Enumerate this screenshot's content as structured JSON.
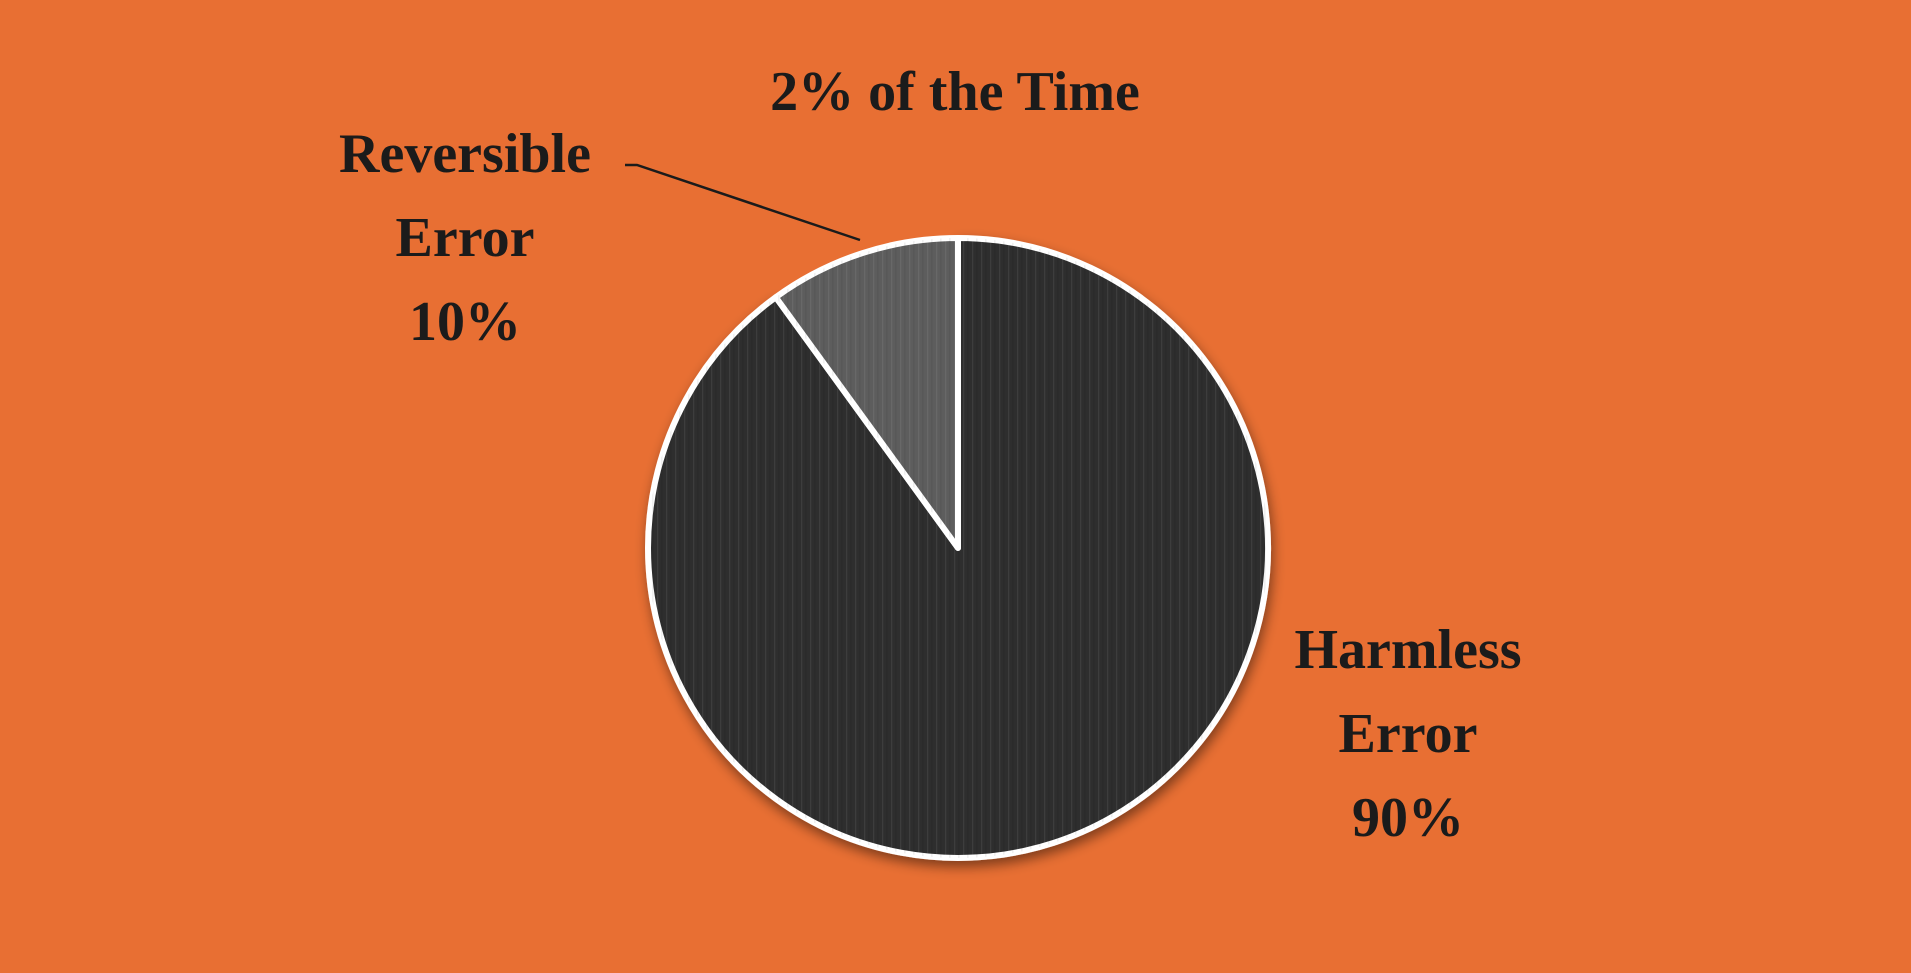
{
  "colors": {
    "background": "#e86f33",
    "slice_dark": "#2e2e2e",
    "slice_light": "#5d5d5d",
    "slice_border": "#ffffff",
    "text": "#1b1b1b"
  },
  "chart_data": {
    "type": "pie",
    "title": "2% of the Time",
    "start_angle_deg": 0,
    "direction": "counterclockwise",
    "legend": "none",
    "slices": [
      {
        "name": "Reversible Error",
        "value": 10,
        "label_lines": [
          "Reversible",
          "Error",
          "10%"
        ],
        "color": "#5d5d5d",
        "leader_line": true
      },
      {
        "name": "Harmless Error",
        "value": 90,
        "label_lines": [
          "Harmless",
          "Error",
          "90%"
        ],
        "color": "#2e2e2e",
        "leader_line": false
      }
    ]
  }
}
